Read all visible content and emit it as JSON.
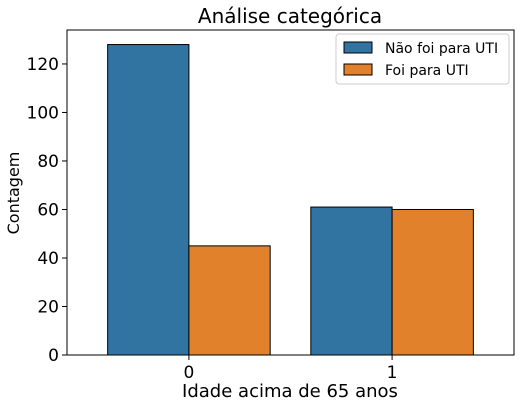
{
  "chart_data": {
    "type": "bar",
    "title": "Análise categórica",
    "xlabel": "Idade acima de 65 anos",
    "ylabel": "Contagem",
    "categories": [
      "0",
      "1"
    ],
    "series": [
      {
        "name": "Não foi para UTI",
        "values": [
          128,
          61
        ],
        "color": "#3274a1"
      },
      {
        "name": "Foi para UTI",
        "values": [
          45,
          60
        ],
        "color": "#e1812c"
      }
    ],
    "ylim": [
      0,
      134
    ],
    "yticks": [
      0,
      20,
      40,
      60,
      80,
      100,
      120
    ],
    "grid": false,
    "legend_position": "top-right"
  }
}
